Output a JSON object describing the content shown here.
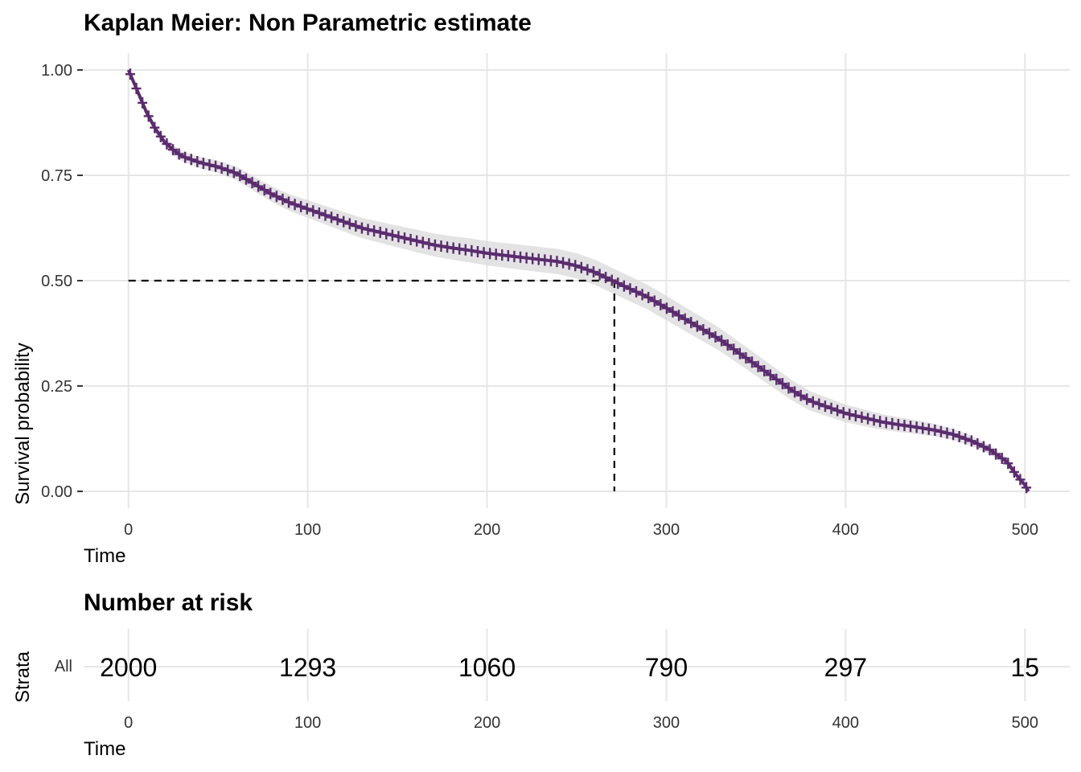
{
  "chart_data": [
    {
      "type": "line",
      "title": "Kaplan Meier: Non Parametric estimate",
      "xlabel": "Time",
      "ylabel": "Survival probability",
      "xlim": [
        -25,
        525
      ],
      "ylim": [
        -0.04,
        1.04
      ],
      "x_ticks": [
        0,
        100,
        200,
        300,
        400,
        500
      ],
      "x_tick_labels": [
        "0",
        "100",
        "200",
        "300",
        "400",
        "500"
      ],
      "y_ticks": [
        0,
        0.25,
        0.5,
        0.75,
        1.0
      ],
      "y_tick_labels": [
        "0.00",
        "0.25",
        "0.50",
        "0.75",
        "1.00"
      ],
      "grid": true,
      "series": [
        {
          "color": "#5a2c6e",
          "confidence_band": true,
          "censor_marks": "+",
          "x": [
            0,
            5,
            10,
            15,
            20,
            25,
            30,
            40,
            50,
            60,
            70,
            80,
            90,
            100,
            110,
            120,
            130,
            140,
            150,
            160,
            170,
            180,
            190,
            200,
            210,
            220,
            230,
            240,
            250,
            260,
            270,
            280,
            290,
            300,
            310,
            320,
            330,
            340,
            350,
            360,
            370,
            380,
            390,
            400,
            410,
            420,
            430,
            440,
            450,
            460,
            470,
            480,
            490,
            495,
            500,
            502
          ],
          "y": [
            1.0,
            0.95,
            0.9,
            0.86,
            0.83,
            0.81,
            0.795,
            0.78,
            0.77,
            0.755,
            0.73,
            0.705,
            0.685,
            0.67,
            0.655,
            0.64,
            0.625,
            0.615,
            0.605,
            0.595,
            0.585,
            0.578,
            0.572,
            0.565,
            0.56,
            0.555,
            0.55,
            0.545,
            0.535,
            0.52,
            0.5,
            0.48,
            0.46,
            0.435,
            0.41,
            0.385,
            0.36,
            0.33,
            0.3,
            0.27,
            0.24,
            0.215,
            0.2,
            0.185,
            0.175,
            0.165,
            0.158,
            0.152,
            0.145,
            0.135,
            0.12,
            0.1,
            0.07,
            0.04,
            0.015,
            0.0
          ]
        }
      ],
      "annotations": [
        {
          "type": "median-line",
          "x": 271,
          "y": 0.5
        }
      ]
    },
    {
      "type": "table",
      "title": "Number at risk",
      "xlabel": "Time",
      "ylabel": "Strata",
      "strata": [
        "All"
      ],
      "x_ticks": [
        0,
        100,
        200,
        300,
        400,
        500
      ],
      "x_tick_labels": [
        "0",
        "100",
        "200",
        "300",
        "400",
        "500"
      ],
      "values": [
        2000,
        1293,
        1060,
        790,
        297,
        15
      ]
    }
  ],
  "colors": {
    "series": "#5a2c6e",
    "grid": "#e6e6e6",
    "band": "#d9d9d9"
  }
}
